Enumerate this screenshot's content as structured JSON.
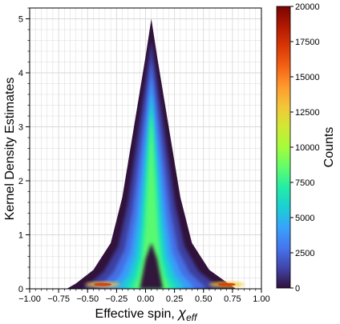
{
  "chart_data": {
    "type": "heatmap",
    "subtype": "2d-density-histogram",
    "xlabel_main": "Effective spin, ",
    "xlabel_symbol": "χ",
    "xlabel_subscript": "eff",
    "ylabel": "Kernel Density Estimates",
    "xlim": [
      -1.0,
      1.0
    ],
    "ylim": [
      0,
      5.2
    ],
    "x_ticks": [
      -1.0,
      -0.75,
      -0.5,
      -0.25,
      0.0,
      0.25,
      0.5,
      0.75,
      1.0
    ],
    "x_tick_labels": [
      "−1.00",
      "−0.75",
      "−0.50",
      "−0.25",
      "0.00",
      "0.25",
      "0.50",
      "0.75",
      "1.00"
    ],
    "y_ticks": [
      0,
      1,
      2,
      3,
      4,
      5
    ],
    "y_tick_labels": [
      "0",
      "1",
      "2",
      "3",
      "4",
      "5"
    ],
    "grid": true,
    "colormap": "turbo",
    "colorbar": {
      "label": "Counts",
      "range": [
        0,
        20000
      ],
      "ticks": [
        0,
        2500,
        5000,
        7500,
        10000,
        12500,
        15000,
        17500,
        20000
      ],
      "tick_labels": [
        "0",
        "2500",
        "5000",
        "7500",
        "10000",
        "12500",
        "15000",
        "17500",
        "20000"
      ]
    },
    "density_profile": {
      "description_points": "outer envelope of the distribution (x, max y)",
      "envelope": [
        [
          -0.68,
          0.0
        ],
        [
          -0.6,
          0.1
        ],
        [
          -0.45,
          0.35
        ],
        [
          -0.3,
          0.85
        ],
        [
          -0.2,
          1.7
        ],
        [
          -0.1,
          3.0
        ],
        [
          0.0,
          4.3
        ],
        [
          0.05,
          5.0
        ],
        [
          0.1,
          4.3
        ],
        [
          0.2,
          3.0
        ],
        [
          0.3,
          1.7
        ],
        [
          0.4,
          0.85
        ],
        [
          0.55,
          0.35
        ],
        [
          0.7,
          0.12
        ],
        [
          0.78,
          0.0
        ]
      ],
      "peak_x": 0.05,
      "peak_y": 4.8,
      "branch_peak_counts": 12000,
      "base_hotspots": [
        [
          -0.37,
          0.08
        ],
        [
          0.7,
          0.08
        ]
      ]
    },
    "colors": {
      "background_low": "#30123b",
      "mid": "#28bceb",
      "high": "#7a0403",
      "grid": "#d9d9d9"
    }
  }
}
